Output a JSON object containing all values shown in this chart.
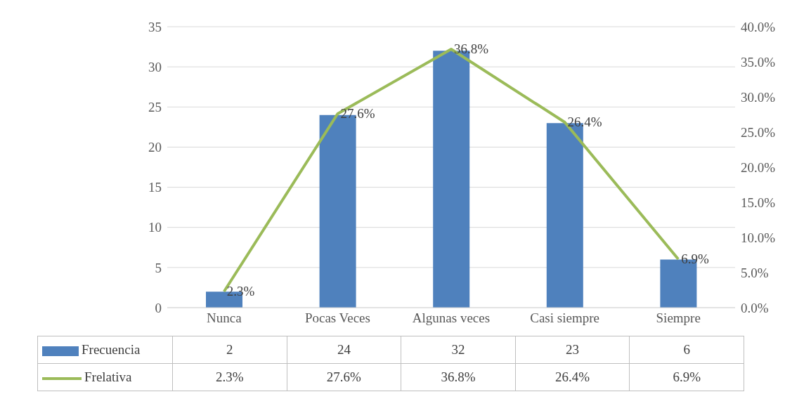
{
  "chart_data": {
    "type": "bar",
    "categories": [
      "Nunca",
      "Pocas Veces",
      "Algunas veces",
      "Casi siempre",
      "Siempre"
    ],
    "series": [
      {
        "name": "Frecuencia",
        "color": "#4f81bd",
        "values": [
          2,
          24,
          32,
          23,
          6
        ],
        "value_labels": [
          "2",
          "24",
          "32",
          "23",
          "6"
        ]
      },
      {
        "name": "Frelativa",
        "type": "line",
        "axis": "y2",
        "color": "#9bbb59",
        "values": [
          2.3,
          27.6,
          36.8,
          26.4,
          6.9
        ],
        "value_labels": [
          "2.3%",
          "27.6%",
          "36.8%",
          "26.4%",
          "6.9%"
        ]
      }
    ],
    "ylim": [
      0,
      35
    ],
    "yticks": [
      0,
      5,
      10,
      15,
      20,
      25,
      30,
      35
    ],
    "y2lim": [
      0,
      40
    ],
    "y2ticks": [
      {
        "value": 0,
        "label": "0.0%"
      },
      {
        "value": 5,
        "label": "5.0%"
      },
      {
        "value": 10,
        "label": "10.0%"
      },
      {
        "value": 15,
        "label": "15.0%"
      },
      {
        "value": 20,
        "label": "20.0%"
      },
      {
        "value": 25,
        "label": "25.0%"
      },
      {
        "value": 30,
        "label": "30.0%"
      },
      {
        "value": 35,
        "label": "35.0%"
      },
      {
        "value": 40,
        "label": "40.0%"
      }
    ],
    "grid": "y",
    "legend": "bottom"
  }
}
